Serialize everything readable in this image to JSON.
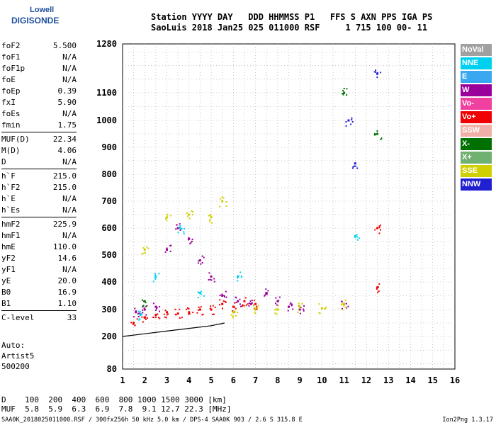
{
  "logo": {
    "line1": "Lowell",
    "line2": "DIGISONDE"
  },
  "header": {
    "line1": "Station YYYY DAY   DDD HHMMSS P1   FFS S AXN PPS IGA PS",
    "line2": "SaoLuis 2018 Jan25 025 011000 RSF     1 715 100 00- 11"
  },
  "params": [
    {
      "k": "foF2",
      "v": "5.500"
    },
    {
      "k": "foF1",
      "v": "N/A"
    },
    {
      "k": "foF1p",
      "v": "N/A"
    },
    {
      "k": "foE",
      "v": "N/A"
    },
    {
      "k": "foEp",
      "v": "0.39"
    },
    {
      "k": "fxI",
      "v": "5.90"
    },
    {
      "k": "foEs",
      "v": "N/A"
    },
    {
      "k": "fmin",
      "v": "1.75"
    },
    {
      "sep": true
    },
    {
      "k": "MUF(D)",
      "v": "22.34"
    },
    {
      "k": "M(D)",
      "v": "4.06"
    },
    {
      "k": "D",
      "v": "N/A"
    },
    {
      "sep": true
    },
    {
      "k": "h`F",
      "v": "215.0"
    },
    {
      "k": "h`F2",
      "v": "215.0"
    },
    {
      "k": "h`E",
      "v": "N/A"
    },
    {
      "k": "h`Es",
      "v": "N/A"
    },
    {
      "sep": true
    },
    {
      "k": "hmF2",
      "v": "225.9"
    },
    {
      "k": "hmF1",
      "v": "N/A"
    },
    {
      "k": "hmE",
      "v": "110.0"
    },
    {
      "k": "yF2",
      "v": "14.6"
    },
    {
      "k": "yF1",
      "v": "N/A"
    },
    {
      "k": "yE",
      "v": "20.0"
    },
    {
      "k": "B0",
      "v": "16.9"
    },
    {
      "k": "B1",
      "v": "1.10"
    },
    {
      "sep": true
    },
    {
      "k": "C-level",
      "v": "33"
    }
  ],
  "auto": {
    "l1": "Auto:",
    "l2": "Artist5",
    "l3": "500200"
  },
  "muf_table": {
    "d_line": "D    100  200  400  600  800 1000 1500 3000 [km]",
    "muf_line": "MUF  5.8  5.9  6.3  6.9  7.8  9.1 12.7 22.3 [MHz]"
  },
  "footer": {
    "left": "SAA0K_2018025011000.RSF / 300fx256h 50 kHz 5.0 km / DPS-4 SAA0K 903 / 2.6 S 315.8 E",
    "right": "Ion2Png 1.3.17"
  },
  "legend": [
    {
      "label": "NoVal",
      "color": "#a0a0a0"
    },
    {
      "label": "NNE",
      "color": "#00d0f0"
    },
    {
      "label": "E",
      "color": "#3aa8f0"
    },
    {
      "label": "W",
      "color": "#9a009a"
    },
    {
      "label": "Vo-",
      "color": "#f040a0"
    },
    {
      "label": "Vo+",
      "color": "#f00000"
    },
    {
      "label": "SSW",
      "color": "#f0b0a8"
    },
    {
      "label": "X-",
      "color": "#007000"
    },
    {
      "label": "X+",
      "color": "#70b070"
    },
    {
      "label": "SSE",
      "color": "#d0d000"
    },
    {
      "label": "NNW",
      "color": "#2020d0"
    }
  ],
  "chart_data": {
    "type": "scatter",
    "xlabel": "",
    "ylabel": "",
    "x_ticks": [
      1,
      2,
      3,
      4,
      5,
      6,
      7,
      8,
      9,
      10,
      11,
      12,
      13,
      14,
      15,
      16
    ],
    "y_ticks": [
      80,
      200,
      300,
      400,
      500,
      600,
      700,
      800,
      900,
      1000,
      1100,
      1280
    ],
    "xlim": [
      1,
      16
    ],
    "ylim_note": "virtual height km, nonlinear axis",
    "profile": {
      "x": [
        1.0,
        2.0,
        3.0,
        4.0,
        5.0,
        5.6
      ],
      "y": [
        200,
        210,
        220,
        230,
        240,
        250
      ]
    },
    "series": [
      {
        "name": "W",
        "points": [
          [
            1.6,
            290
          ],
          [
            2.0,
            300
          ],
          [
            2.5,
            310
          ],
          [
            3.0,
            520
          ],
          [
            3.5,
            600
          ],
          [
            4.0,
            560
          ],
          [
            4.5,
            480
          ],
          [
            5.0,
            420
          ],
          [
            5.5,
            350
          ],
          [
            6.2,
            330
          ],
          [
            6.8,
            320
          ],
          [
            7.5,
            360
          ],
          [
            8.0,
            330
          ],
          [
            8.5,
            310
          ],
          [
            9.0,
            300
          ],
          [
            11.0,
            320
          ]
        ]
      },
      {
        "name": "Vo+",
        "points": [
          [
            1.5,
            250
          ],
          [
            2.0,
            270
          ],
          [
            2.5,
            280
          ],
          [
            3.0,
            290
          ],
          [
            3.5,
            285
          ],
          [
            4.0,
            290
          ],
          [
            4.5,
            300
          ],
          [
            5.0,
            300
          ],
          [
            5.5,
            320
          ],
          [
            6.0,
            310
          ],
          [
            6.5,
            330
          ],
          [
            7.0,
            320
          ],
          [
            12.5,
            380
          ],
          [
            12.5,
            600
          ]
        ]
      },
      {
        "name": "SSE",
        "points": [
          [
            2.0,
            520
          ],
          [
            3.0,
            640
          ],
          [
            4.0,
            650
          ],
          [
            5.0,
            640
          ],
          [
            5.5,
            700
          ],
          [
            6.0,
            290
          ],
          [
            7.0,
            300
          ],
          [
            8.0,
            300
          ],
          [
            9.0,
            310
          ],
          [
            10.0,
            305
          ],
          [
            11.0,
            320
          ]
        ]
      },
      {
        "name": "NNE",
        "points": [
          [
            1.8,
            280
          ],
          [
            2.5,
            420
          ],
          [
            3.6,
            600
          ],
          [
            4.5,
            360
          ],
          [
            6.2,
            420
          ],
          [
            11.5,
            570
          ]
        ]
      },
      {
        "name": "X-",
        "points": [
          [
            2.0,
            330
          ],
          [
            11.0,
            1100
          ],
          [
            12.5,
            950
          ]
        ]
      },
      {
        "name": "NNW",
        "points": [
          [
            11.2,
            1000
          ],
          [
            11.5,
            840
          ],
          [
            12.5,
            1170
          ]
        ]
      }
    ]
  }
}
